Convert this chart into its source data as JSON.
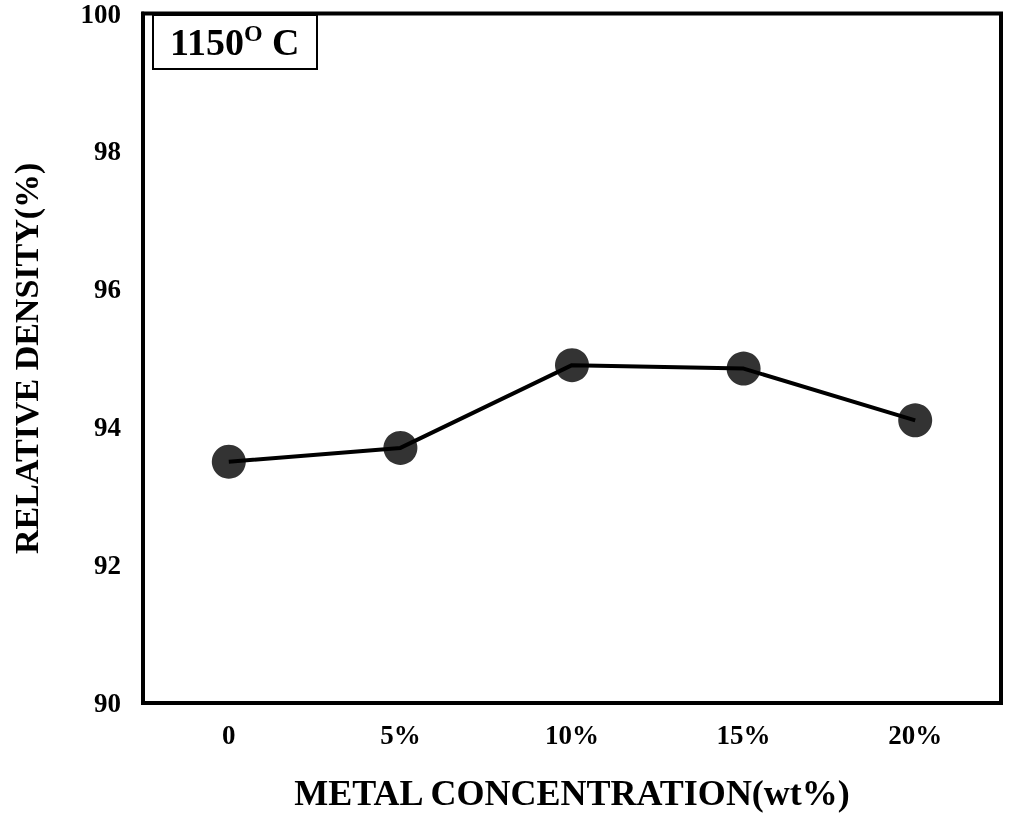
{
  "chart_data": {
    "type": "line",
    "xlabel": "METAL CONCENTRATION(wt%)",
    "ylabel": "RELATIVE DENSITY(%)",
    "annotations": [
      "1150$^{O}$ C"
    ],
    "categories": [
      "0",
      "5%",
      "10%",
      "15%",
      "20%"
    ],
    "series": [
      {
        "color": "#000000",
        "values": [
          93.5,
          93.7,
          94.9,
          94.85,
          94.1
        ]
      }
    ],
    "ylim": [
      90,
      100
    ],
    "yticks": [
      90,
      92,
      94,
      96,
      98,
      100
    ],
    "grid": false,
    "marker": "circle",
    "line_style": "solid"
  }
}
